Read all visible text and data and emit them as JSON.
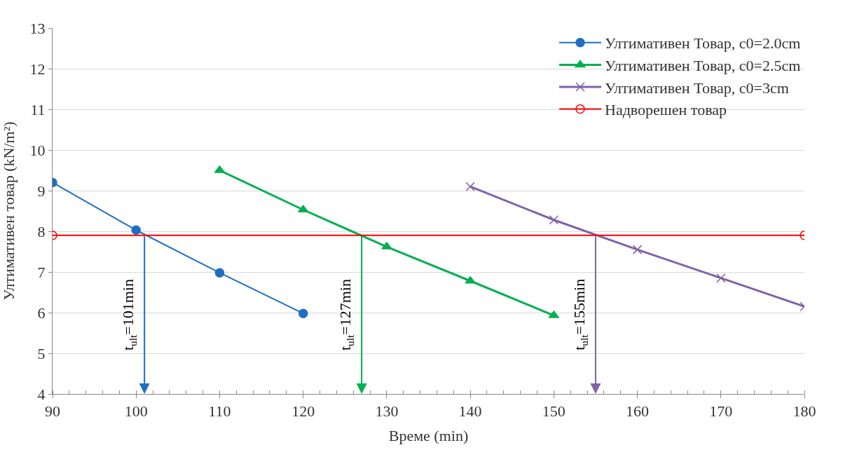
{
  "chart_data": {
    "type": "line",
    "xlabel": "Време (min)",
    "ylabel": "Ултимативен товар (kN/m²)",
    "xlim": [
      90,
      180
    ],
    "xticks": [
      90,
      100,
      110,
      120,
      130,
      140,
      150,
      160,
      170,
      180
    ],
    "ylim": [
      4,
      13
    ],
    "yticks": [
      4,
      5,
      6,
      7,
      8,
      9,
      10,
      11,
      12,
      13
    ],
    "grid": "y",
    "legend": "top right",
    "series": [
      {
        "name": "Ултимативен Товар, c0=2.0cm",
        "color": "#1f6fbf",
        "marker": "circle",
        "x": [
          90,
          100,
          110,
          120
        ],
        "values": [
          9.2,
          8.03,
          6.98,
          5.98
        ]
      },
      {
        "name": "Ултимативен Товар, c0=2.5cm",
        "color": "#00b050",
        "marker": "triangle",
        "x": [
          110,
          120,
          130,
          140,
          150
        ],
        "values": [
          9.5,
          8.53,
          7.62,
          6.78,
          5.93
        ]
      },
      {
        "name": "Ултимативен Товар, c0=3cm",
        "color": "#7f62a8",
        "marker": "cross",
        "x": [
          140,
          150,
          160,
          170,
          180
        ],
        "values": [
          9.1,
          8.28,
          7.55,
          6.85,
          6.15
        ]
      },
      {
        "name": "Надворешен товар",
        "color": "#ff0000",
        "marker": "circle-open",
        "x": [
          90,
          180
        ],
        "values": [
          7.9,
          7.9
        ]
      }
    ],
    "annotations": [
      {
        "text": "t$_{ult}$=101min",
        "x": 101,
        "y": 7.9
      },
      {
        "text": "t$_{ult}$=127min",
        "x": 127,
        "y": 7.9
      },
      {
        "text": "t$_{ult}$=155min",
        "x": 155,
        "y": 7.9
      }
    ]
  }
}
